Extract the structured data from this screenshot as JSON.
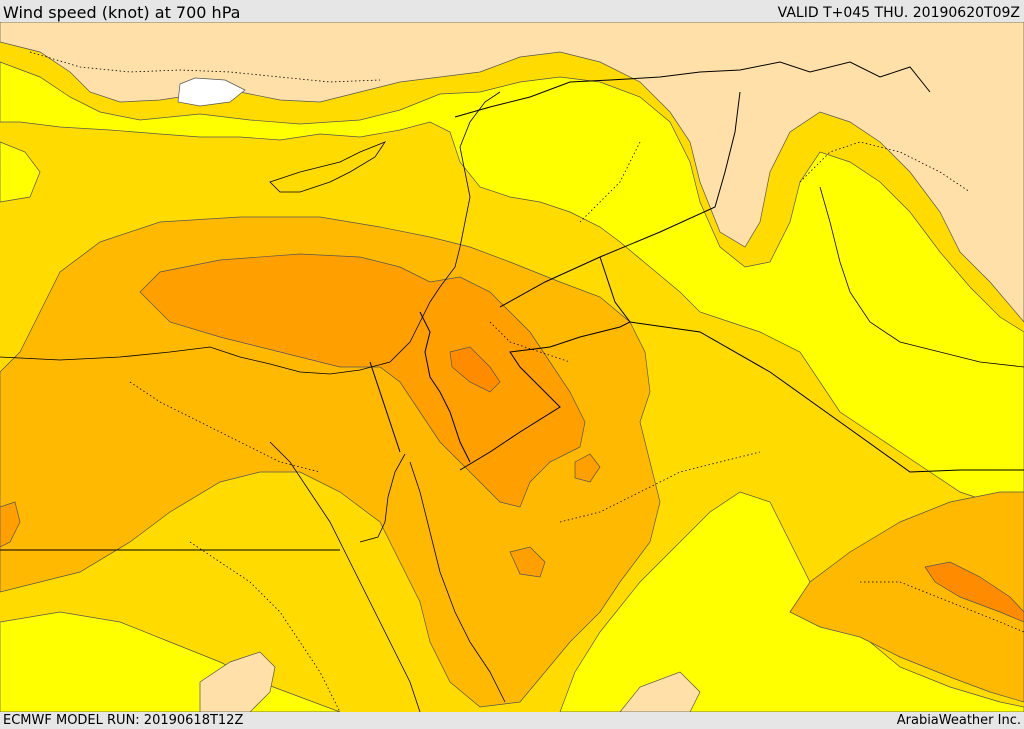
{
  "header": {
    "title": "Wind speed (knot) at 700 hPa",
    "valid": "VALID T+045 THU. 20190620T09Z"
  },
  "footer": {
    "model_run": "ECMWF MODEL RUN: 20190618T12Z",
    "credit": "ArabiaWeather Inc."
  },
  "colors": {
    "below_band": "#ffe0a8",
    "band_yellow": "#ffff00",
    "band_gold": "#ffdb00",
    "band_amber": "#ffb900",
    "band_orange": "#ff9f00",
    "band_deep_orange": "#ff8c00",
    "calm_white": "#ffffff"
  }
}
